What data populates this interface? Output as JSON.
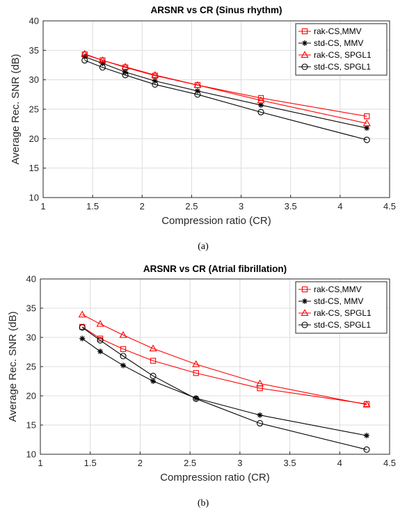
{
  "chart_data": [
    {
      "type": "line",
      "title": "ARSNR vs CR (Sinus rhythm)",
      "xlabel": "Compression ratio (CR)",
      "ylabel": "Average Rec. SNR (dB)",
      "xlim": [
        1,
        4.5
      ],
      "ylim": [
        10,
        40
      ],
      "xticks": [
        "1",
        "1.5",
        "2",
        "2.5",
        "3",
        "3.5",
        "4",
        "4.5"
      ],
      "yticks": [
        "10",
        "15",
        "20",
        "25",
        "30",
        "35",
        "40"
      ],
      "grid": true,
      "legend_position": "top-right",
      "caption": "(a)",
      "x": [
        1.42,
        1.6,
        1.83,
        2.13,
        2.56,
        3.2,
        4.27
      ],
      "series": [
        {
          "name": "rak-CS,MMV",
          "color": "#ff0000",
          "marker": "square",
          "values": [
            34.3,
            33.3,
            32.1,
            30.7,
            29.1,
            26.9,
            23.8
          ]
        },
        {
          "name": "std-CS, MMV",
          "color": "#000000",
          "marker": "star",
          "values": [
            33.9,
            32.8,
            31.3,
            29.8,
            28.1,
            25.7,
            21.8
          ]
        },
        {
          "name": "rak-CS, SPGL1",
          "color": "#ff0000",
          "marker": "triangle",
          "values": [
            34.4,
            33.3,
            32.2,
            30.8,
            29.1,
            26.5,
            22.6
          ]
        },
        {
          "name": "std-CS, SPGL1",
          "color": "#000000",
          "marker": "circle",
          "values": [
            33.3,
            32.1,
            30.8,
            29.2,
            27.5,
            24.5,
            19.8
          ]
        }
      ]
    },
    {
      "type": "line",
      "title": "ARSNR vs CR (Atrial fibrillation)",
      "xlabel": "Compression ratio (CR)",
      "ylabel": "Average Rec. SNR (dB)",
      "xlim": [
        1,
        4.5
      ],
      "ylim": [
        10,
        40
      ],
      "xticks": [
        "1",
        "1.5",
        "2",
        "2.5",
        "3",
        "3.5",
        "4",
        "4.5"
      ],
      "yticks": [
        "10",
        "15",
        "20",
        "25",
        "30",
        "35",
        "40"
      ],
      "grid": true,
      "legend_position": "top-right",
      "caption": "(b)",
      "x": [
        1.42,
        1.6,
        1.83,
        2.13,
        2.56,
        3.2,
        4.27
      ],
      "series": [
        {
          "name": "rak-CS,MMV",
          "color": "#ff0000",
          "marker": "square",
          "values": [
            31.8,
            29.8,
            28.0,
            26.0,
            23.9,
            21.3,
            18.6
          ]
        },
        {
          "name": "std-CS, MMV",
          "color": "#000000",
          "marker": "star",
          "values": [
            29.8,
            27.6,
            25.2,
            22.5,
            19.6,
            16.7,
            13.2
          ]
        },
        {
          "name": "rak-CS, SPGL1",
          "color": "#ff0000",
          "marker": "triangle",
          "values": [
            33.9,
            32.3,
            30.4,
            28.1,
            25.4,
            22.1,
            18.5
          ]
        },
        {
          "name": "std-CS, SPGL1",
          "color": "#000000",
          "marker": "circle",
          "values": [
            31.7,
            29.5,
            26.8,
            23.4,
            19.5,
            15.3,
            10.8
          ]
        }
      ]
    }
  ]
}
